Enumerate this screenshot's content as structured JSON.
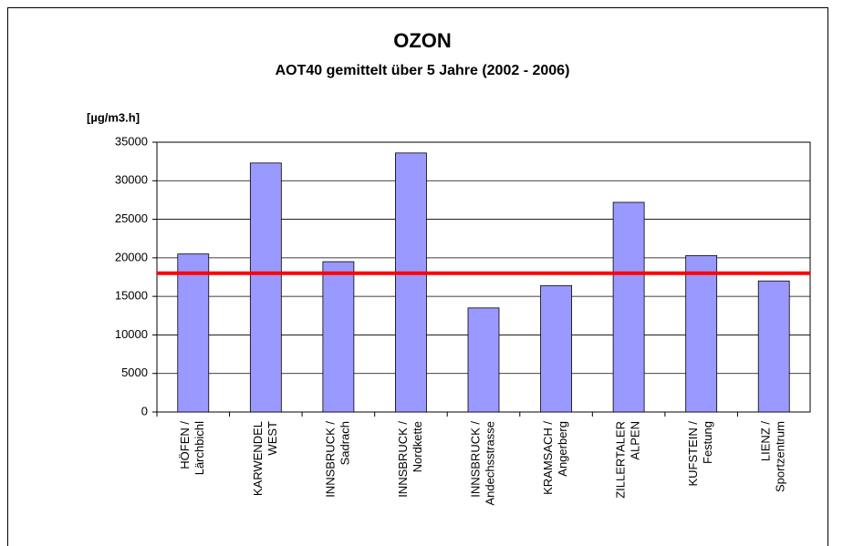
{
  "chart_data": {
    "type": "bar",
    "title": "OZON",
    "subtitle": "AOT40 gemittelt über 5 Jahre (2002 - 2006)",
    "y_label": "[µg/m3.h]",
    "categories": [
      [
        "HÖFEN /",
        "Lärchbichl"
      ],
      [
        "KARWENDEL",
        "WEST"
      ],
      [
        "INNSBRUCK /",
        "Sadrach"
      ],
      [
        "INNSBRUCK /",
        "Nordkette"
      ],
      [
        "INNSBRUCK /",
        "Andechsstrasse"
      ],
      [
        "KRAMSACH /",
        "Angerberg"
      ],
      [
        "ZILLERTALER",
        "ALPEN"
      ],
      [
        "KUFSTEIN /",
        "Festung"
      ],
      [
        "LIENZ /",
        "Sportzentrum"
      ]
    ],
    "values": [
      20500,
      32300,
      19500,
      33600,
      13500,
      16400,
      27200,
      20300,
      17000
    ],
    "color": "#9999ff",
    "reference_line": {
      "value": 18000,
      "color": "#ff0000"
    },
    "ylim": [
      0,
      35000
    ],
    "yticks": [
      0,
      5000,
      10000,
      15000,
      20000,
      25000,
      30000,
      35000
    ],
    "grid": true
  }
}
